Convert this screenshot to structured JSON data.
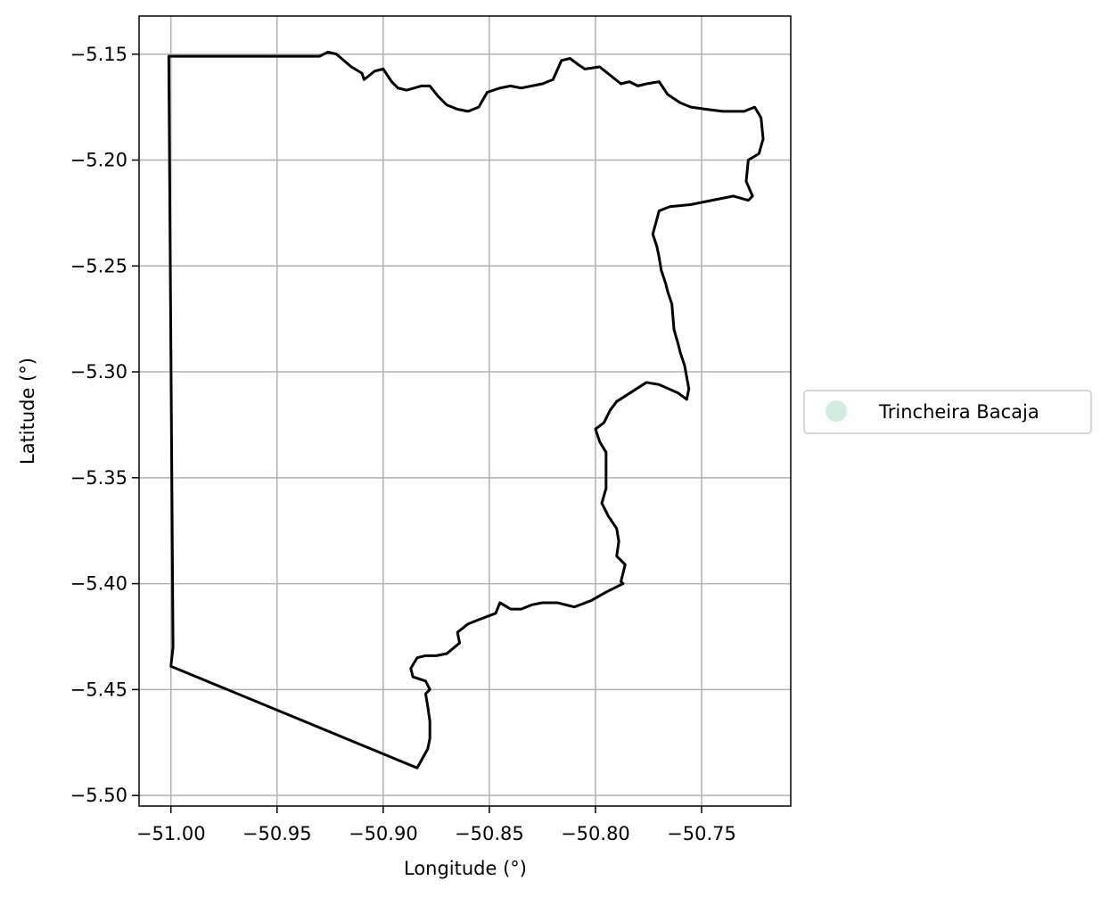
{
  "chart_data": {
    "type": "map",
    "title": "",
    "xlabel": "Longitude (°)",
    "ylabel": "Latitude (°)",
    "xlim": [
      -51.015,
      -50.708
    ],
    "ylim": [
      -5.505,
      -5.132
    ],
    "xticks": [
      -51.0,
      -50.95,
      -50.9,
      -50.85,
      -50.8,
      -50.75
    ],
    "xtick_labels": [
      "−51.00",
      "−50.95",
      "−50.90",
      "−50.85",
      "−50.80",
      "−50.75"
    ],
    "yticks": [
      -5.15,
      -5.2,
      -5.25,
      -5.3,
      -5.35,
      -5.4,
      -5.45,
      -5.5
    ],
    "ytick_labels": [
      "−5.15",
      "−5.20",
      "−5.25",
      "−5.30",
      "−5.35",
      "−5.40",
      "−5.45",
      "−5.50"
    ],
    "grid": true,
    "legend": {
      "placement": "right",
      "entries": [
        {
          "label": "Trincheira Bacaja",
          "color": "#d0ede0",
          "marker": "circle"
        }
      ]
    },
    "boundary": {
      "name": "Trincheira Bacaja",
      "stroke_color": "#000000",
      "coordinates": [
        [
          -51.001,
          -5.151
        ],
        [
          -50.93,
          -5.151
        ],
        [
          -50.926,
          -5.149
        ],
        [
          -50.922,
          -5.15
        ],
        [
          -50.915,
          -5.156
        ],
        [
          -50.91,
          -5.159
        ],
        [
          -50.909,
          -5.162
        ],
        [
          -50.904,
          -5.158
        ],
        [
          -50.9,
          -5.157
        ],
        [
          -50.896,
          -5.163
        ],
        [
          -50.893,
          -5.166
        ],
        [
          -50.889,
          -5.167
        ],
        [
          -50.882,
          -5.165
        ],
        [
          -50.878,
          -5.165
        ],
        [
          -50.874,
          -5.17
        ],
        [
          -50.87,
          -5.174
        ],
        [
          -50.865,
          -5.176
        ],
        [
          -50.86,
          -5.177
        ],
        [
          -50.855,
          -5.175
        ],
        [
          -50.851,
          -5.168
        ],
        [
          -50.845,
          -5.166
        ],
        [
          -50.84,
          -5.165
        ],
        [
          -50.835,
          -5.166
        ],
        [
          -50.83,
          -5.165
        ],
        [
          -50.825,
          -5.164
        ],
        [
          -50.82,
          -5.162
        ],
        [
          -50.816,
          -5.153
        ],
        [
          -50.812,
          -5.152
        ],
        [
          -50.808,
          -5.155
        ],
        [
          -50.805,
          -5.157
        ],
        [
          -50.798,
          -5.156
        ],
        [
          -50.793,
          -5.16
        ],
        [
          -50.788,
          -5.164
        ],
        [
          -50.784,
          -5.163
        ],
        [
          -50.78,
          -5.165
        ],
        [
          -50.776,
          -5.164
        ],
        [
          -50.77,
          -5.163
        ],
        [
          -50.766,
          -5.169
        ],
        [
          -50.76,
          -5.173
        ],
        [
          -50.755,
          -5.175
        ],
        [
          -50.748,
          -5.176
        ],
        [
          -50.74,
          -5.177
        ],
        [
          -50.73,
          -5.177
        ],
        [
          -50.725,
          -5.175
        ],
        [
          -50.722,
          -5.18
        ],
        [
          -50.721,
          -5.19
        ],
        [
          -50.723,
          -5.197
        ],
        [
          -50.728,
          -5.2
        ],
        [
          -50.729,
          -5.21
        ],
        [
          -50.726,
          -5.217
        ],
        [
          -50.728,
          -5.219
        ],
        [
          -50.735,
          -5.217
        ],
        [
          -50.745,
          -5.219
        ],
        [
          -50.755,
          -5.221
        ],
        [
          -50.765,
          -5.222
        ],
        [
          -50.77,
          -5.224
        ],
        [
          -50.773,
          -5.235
        ],
        [
          -50.771,
          -5.241
        ],
        [
          -50.77,
          -5.246
        ],
        [
          -50.769,
          -5.252
        ],
        [
          -50.767,
          -5.258
        ],
        [
          -50.766,
          -5.262
        ],
        [
          -50.764,
          -5.268
        ],
        [
          -50.763,
          -5.28
        ],
        [
          -50.761,
          -5.287
        ],
        [
          -50.76,
          -5.291
        ],
        [
          -50.758,
          -5.297
        ],
        [
          -50.756,
          -5.308
        ],
        [
          -50.757,
          -5.313
        ],
        [
          -50.761,
          -5.31
        ],
        [
          -50.77,
          -5.306
        ],
        [
          -50.776,
          -5.305
        ],
        [
          -50.79,
          -5.314
        ],
        [
          -50.793,
          -5.318
        ],
        [
          -50.796,
          -5.324
        ],
        [
          -50.8,
          -5.327
        ],
        [
          -50.798,
          -5.333
        ],
        [
          -50.795,
          -5.338
        ],
        [
          -50.795,
          -5.355
        ],
        [
          -50.797,
          -5.362
        ],
        [
          -50.794,
          -5.368
        ],
        [
          -50.79,
          -5.374
        ],
        [
          -50.789,
          -5.38
        ],
        [
          -50.79,
          -5.387
        ],
        [
          -50.786,
          -5.391
        ],
        [
          -50.788,
          -5.399
        ],
        [
          -50.787,
          -5.4
        ],
        [
          -50.795,
          -5.404
        ],
        [
          -50.802,
          -5.408
        ],
        [
          -50.81,
          -5.411
        ],
        [
          -50.818,
          -5.409
        ],
        [
          -50.825,
          -5.409
        ],
        [
          -50.83,
          -5.41
        ],
        [
          -50.835,
          -5.412
        ],
        [
          -50.84,
          -5.412
        ],
        [
          -50.845,
          -5.409
        ],
        [
          -50.847,
          -5.414
        ],
        [
          -50.855,
          -5.417
        ],
        [
          -50.86,
          -5.419
        ],
        [
          -50.865,
          -5.423
        ],
        [
          -50.864,
          -5.428
        ],
        [
          -50.87,
          -5.433
        ],
        [
          -50.875,
          -5.434
        ],
        [
          -50.88,
          -5.434
        ],
        [
          -50.884,
          -5.435
        ],
        [
          -50.887,
          -5.44
        ],
        [
          -50.886,
          -5.444
        ],
        [
          -50.88,
          -5.446
        ],
        [
          -50.878,
          -5.45
        ],
        [
          -50.88,
          -5.452
        ],
        [
          -50.879,
          -5.458
        ],
        [
          -50.878,
          -5.465
        ],
        [
          -50.878,
          -5.473
        ],
        [
          -50.879,
          -5.478
        ],
        [
          -50.884,
          -5.487
        ],
        [
          -51.0,
          -5.439
        ],
        [
          -50.999,
          -5.43
        ],
        [
          -51.001,
          -5.151
        ]
      ]
    }
  }
}
